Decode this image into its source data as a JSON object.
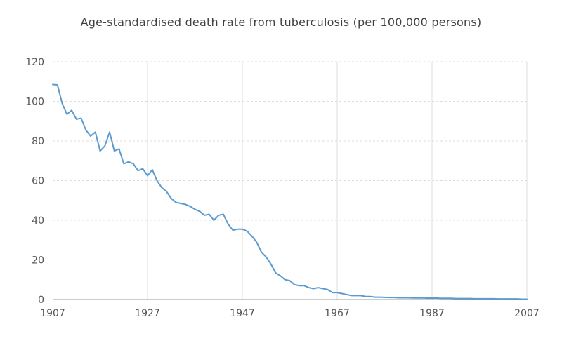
{
  "chart_data": {
    "type": "line",
    "title": "Age-standardised death rate from tuberculosis (per 100,000 persons)",
    "xlabel": "",
    "ylabel": "",
    "xlim": [
      1907,
      2007
    ],
    "ylim": [
      0,
      120
    ],
    "x_ticks": [
      1907,
      1927,
      1947,
      1967,
      1987,
      2007
    ],
    "y_ticks": [
      0,
      20,
      40,
      60,
      80,
      100,
      120
    ],
    "grid": true,
    "legend": "none",
    "series": [
      {
        "color": "#5b9bd0",
        "x": [
          1907,
          1908,
          1909,
          1910,
          1911,
          1912,
          1913,
          1914,
          1915,
          1916,
          1917,
          1918,
          1919,
          1920,
          1921,
          1922,
          1923,
          1924,
          1925,
          1926,
          1927,
          1928,
          1929,
          1930,
          1931,
          1932,
          1933,
          1934,
          1935,
          1936,
          1937,
          1938,
          1939,
          1940,
          1941,
          1942,
          1943,
          1944,
          1945,
          1946,
          1947,
          1948,
          1949,
          1950,
          1951,
          1952,
          1953,
          1954,
          1955,
          1956,
          1957,
          1958,
          1959,
          1960,
          1961,
          1962,
          1963,
          1964,
          1965,
          1966,
          1967,
          1968,
          1969,
          1970,
          1971,
          1972,
          1973,
          1974,
          1975,
          1976,
          1977,
          1978,
          1979,
          1980,
          1981,
          1982,
          1983,
          1984,
          1985,
          1986,
          1987,
          1988,
          1989,
          1990,
          1991,
          1992,
          1993,
          1994,
          1995,
          1996,
          1997,
          1998,
          1999,
          2000,
          2001,
          2002,
          2003,
          2004,
          2005,
          2006,
          2007
        ],
        "y": [
          108.5,
          108.3,
          99,
          93.5,
          95.5,
          91,
          91.5,
          85.5,
          82.5,
          84.5,
          75,
          77.5,
          84.5,
          75,
          76,
          68.5,
          69.5,
          68.5,
          65,
          66,
          62.5,
          65.5,
          60,
          56.5,
          54.5,
          51,
          49,
          48.5,
          48,
          47,
          45.5,
          44.5,
          42.5,
          43,
          40,
          42.5,
          43,
          38,
          35,
          35.5,
          35.5,
          34.5,
          32,
          29,
          24,
          21.5,
          18,
          13.5,
          12,
          10,
          9.5,
          7.5,
          7,
          7,
          6,
          5.5,
          6,
          5.5,
          5,
          3.5,
          3.5,
          3,
          2.5,
          2,
          2,
          2,
          1.5,
          1.5,
          1.2,
          1.2,
          1.1,
          1,
          1,
          0.9,
          0.9,
          0.9,
          0.8,
          0.8,
          0.8,
          0.7,
          0.7,
          0.7,
          0.6,
          0.6,
          0.6,
          0.5,
          0.5,
          0.5,
          0.5,
          0.4,
          0.4,
          0.4,
          0.4,
          0.4,
          0.3,
          0.3,
          0.3,
          0.3,
          0.3,
          0.2,
          0.2
        ]
      }
    ]
  }
}
